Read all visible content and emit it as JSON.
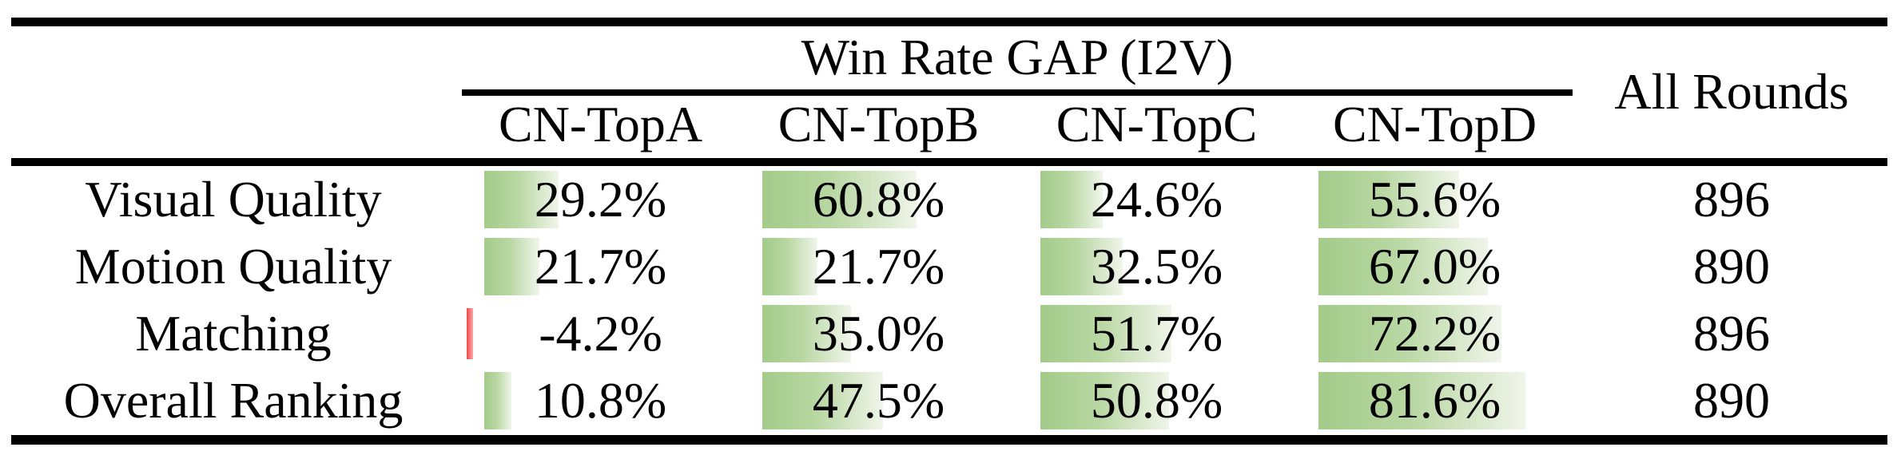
{
  "table": {
    "group_header": "Win Rate GAP (I2V)",
    "all_rounds_header": "All Rounds",
    "columns": [
      "CN-TopA",
      "CN-TopB",
      "CN-TopC",
      "CN-TopD"
    ],
    "rows": [
      {
        "label": "Visual Quality",
        "cells": [
          {
            "text": "29.2%",
            "value": 29.2
          },
          {
            "text": "60.8%",
            "value": 60.8
          },
          {
            "text": "24.6%",
            "value": 24.6
          },
          {
            "text": "55.6%",
            "value": 55.6
          }
        ],
        "all_rounds": "896"
      },
      {
        "label": "Motion Quality",
        "cells": [
          {
            "text": "21.7%",
            "value": 21.7
          },
          {
            "text": "21.7%",
            "value": 21.7
          },
          {
            "text": "32.5%",
            "value": 32.5
          },
          {
            "text": "67.0%",
            "value": 67.0
          }
        ],
        "all_rounds": "890"
      },
      {
        "label": "Matching",
        "cells": [
          {
            "text": "-4.2%",
            "value": -4.2
          },
          {
            "text": "35.0%",
            "value": 35.0
          },
          {
            "text": "51.7%",
            "value": 51.7
          },
          {
            "text": "72.2%",
            "value": 72.2
          }
        ],
        "all_rounds": "896"
      },
      {
        "label": "Overall Ranking",
        "cells": [
          {
            "text": "10.8%",
            "value": 10.8
          },
          {
            "text": "47.5%",
            "value": 47.5
          },
          {
            "text": "50.8%",
            "value": 50.8
          },
          {
            "text": "81.6%",
            "value": 81.6
          }
        ],
        "all_rounds": "890"
      }
    ]
  },
  "colors": {
    "bar_green_start": "#a3cb8a",
    "bar_green_mid": "#b8d7a2",
    "bar_green_end": "#f0f5ea",
    "bar_red_start": "#f04848",
    "bar_red_end": "#fba8a8",
    "rule_black": "#000000"
  },
  "chart_data": {
    "type": "table",
    "title": "Win Rate GAP (I2V)",
    "columns": [
      "CN-TopA",
      "CN-TopB",
      "CN-TopC",
      "CN-TopD",
      "All Rounds"
    ],
    "row_labels": [
      "Visual Quality",
      "Motion Quality",
      "Matching",
      "Overall Ranking"
    ],
    "series": [
      {
        "name": "CN-TopA",
        "values": [
          29.2,
          21.7,
          -4.2,
          10.8
        ]
      },
      {
        "name": "CN-TopB",
        "values": [
          60.8,
          21.7,
          35.0,
          47.5
        ]
      },
      {
        "name": "CN-TopC",
        "values": [
          24.6,
          32.5,
          51.7,
          50.8
        ]
      },
      {
        "name": "CN-TopD",
        "values": [
          55.6,
          67.0,
          72.2,
          81.6
        ]
      }
    ],
    "all_rounds": [
      896,
      890,
      896,
      890
    ],
    "value_unit": "%",
    "bar_style": "in-cell data bars, green gradient for positive, red for negative, width proportional to value (0-100% maps to full cell width)"
  }
}
